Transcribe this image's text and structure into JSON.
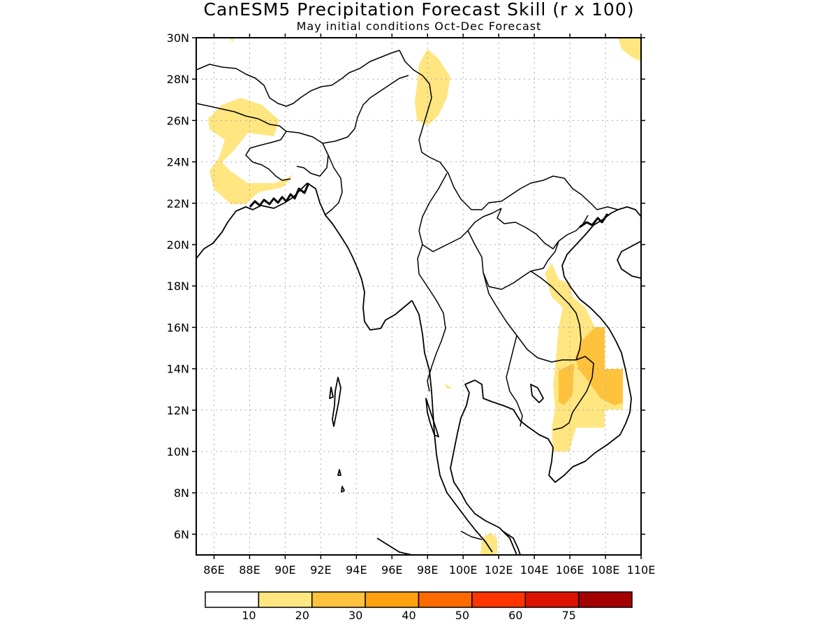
{
  "title": "CanESM5 Precipitation Forecast Skill (r x 100)",
  "subtitle": "May initial conditions  Oct-Dec Forecast",
  "map": {
    "lat_labels": [
      "30N",
      "28N",
      "26N",
      "24N",
      "22N",
      "20N",
      "18N",
      "16N",
      "14N",
      "12N",
      "10N",
      "8N",
      "6N"
    ],
    "lon_labels": [
      "86E",
      "88E",
      "90E",
      "92E",
      "94E",
      "96E",
      "98E",
      "100E",
      "102E",
      "104E",
      "106E",
      "108E",
      "110E"
    ],
    "lon_range": [
      85,
      110
    ],
    "lat_range": [
      5,
      30
    ],
    "grid": "dotted"
  },
  "legend": {
    "labels": [
      "10",
      "20",
      "30",
      "40",
      "50",
      "60",
      "75"
    ],
    "colors": [
      "#ffffff",
      "#ffe680",
      "#ffc23d",
      "#ffa10d",
      "#ff6a00",
      "#ff3500",
      "#dd1200",
      "#a50000"
    ]
  }
}
